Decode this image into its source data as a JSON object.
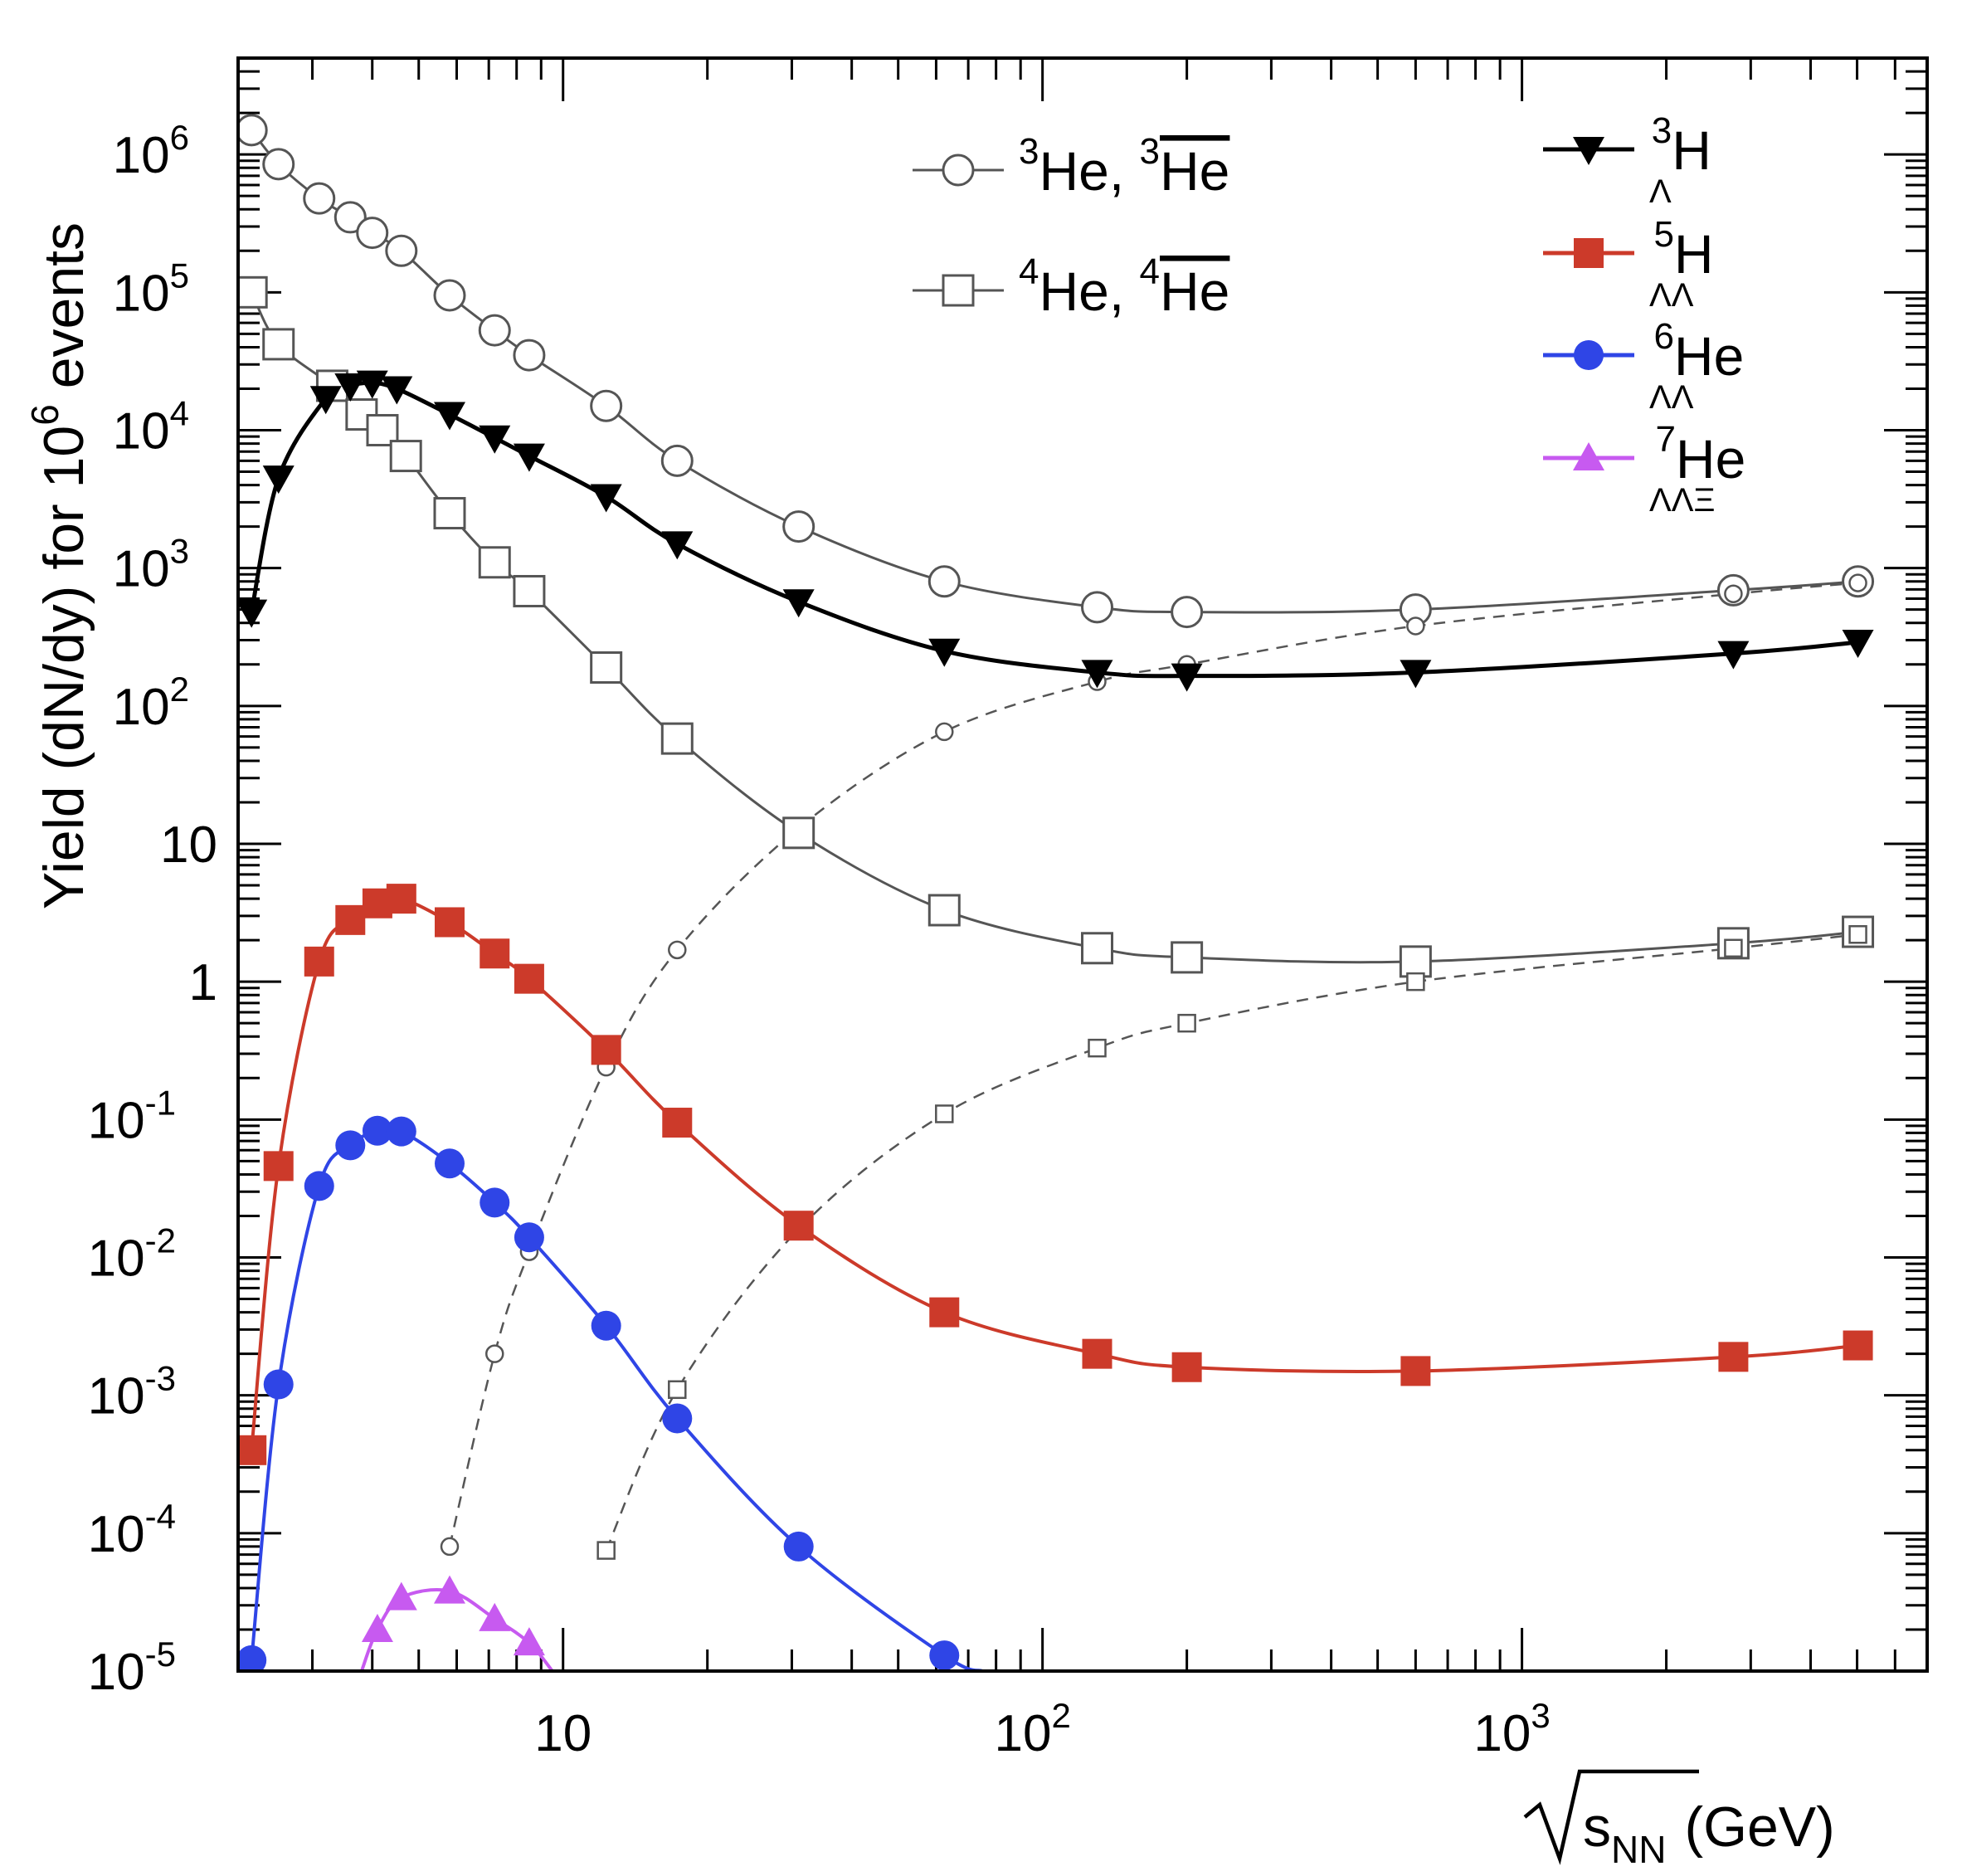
{
  "chart_data": {
    "type": "scatter",
    "title": "",
    "xlabel": "√s_NN (GeV)",
    "xlabel_parts": {
      "sub": "NN",
      "main": "s",
      "units": "(GeV)"
    },
    "ylabel": "Yield (dN/dy) for 10^6 events",
    "ylabel_parts": {
      "pre": "Yield (dN/dy) for 10",
      "exp": "6",
      "post": " events"
    },
    "x_scale": "log",
    "y_scale": "log",
    "xlim": [
      2.1,
      7000
    ],
    "ylim": [
      1e-05,
      5000000
    ],
    "x_ticks": [
      {
        "value": 10,
        "base": "10",
        "exp": ""
      },
      {
        "value": 100,
        "base": "10",
        "exp": "2"
      },
      {
        "value": 1000,
        "base": "10",
        "exp": "3"
      }
    ],
    "y_ticks": [
      {
        "value": 1e-05,
        "base": "10",
        "exp": "-5"
      },
      {
        "value": 0.0001,
        "base": "10",
        "exp": "-4"
      },
      {
        "value": 0.001,
        "base": "10",
        "exp": "-3"
      },
      {
        "value": 0.01,
        "base": "10",
        "exp": "-2"
      },
      {
        "value": 0.1,
        "base": "10",
        "exp": "-1"
      },
      {
        "value": 1,
        "base": "1",
        "exp": ""
      },
      {
        "value": 10,
        "base": "10",
        "exp": ""
      },
      {
        "value": 100,
        "base": "10",
        "exp": "2"
      },
      {
        "value": 1000,
        "base": "10",
        "exp": "3"
      },
      {
        "value": 10000,
        "base": "10",
        "exp": "4"
      },
      {
        "value": 100000,
        "base": "10",
        "exp": "5"
      },
      {
        "value": 1000000,
        "base": "10",
        "exp": "6"
      }
    ],
    "legend": [
      {
        "series": "he3",
        "parts": [
          {
            "t": "3",
            "sup": true
          },
          {
            "t": "He, "
          },
          {
            "t": "3",
            "sup": true
          },
          {
            "t": "He",
            "over": true
          }
        ]
      },
      {
        "series": "he4",
        "parts": [
          {
            "t": "4",
            "sup": true
          },
          {
            "t": "He, "
          },
          {
            "t": "4",
            "sup": true
          },
          {
            "t": "He",
            "over": true
          }
        ]
      },
      {
        "series": "h3l",
        "parts": [
          {
            "t": "Λ",
            "sub": true
          },
          {
            "t": "3",
            "sup": true
          },
          {
            "t": "H"
          }
        ]
      },
      {
        "series": "h5ll",
        "parts": [
          {
            "t": "ΛΛ",
            "sub": true
          },
          {
            "t": "5",
            "sup": true
          },
          {
            "t": "H"
          }
        ]
      },
      {
        "series": "he6ll",
        "parts": [
          {
            "t": "ΛΛ",
            "sub": true
          },
          {
            "t": "6",
            "sup": true
          },
          {
            "t": "He"
          }
        ]
      },
      {
        "series": "he7llx",
        "parts": [
          {
            "t": "ΛΛΞ",
            "sub": true
          },
          {
            "t": "7",
            "sup": true
          },
          {
            "t": "He"
          }
        ]
      }
    ],
    "series": [
      {
        "id": "he3",
        "name": "3He",
        "color": "#555555",
        "marker": "circle-open",
        "line": "solid",
        "x": [
          2.24,
          2.55,
          3.1,
          3.6,
          4.0,
          4.6,
          5.8,
          7.2,
          8.5,
          12.3,
          17.3,
          31,
          62.4,
          130,
          200,
          600,
          2760,
          5020
        ],
        "y": [
          1500000.0,
          850000.0,
          480000.0,
          350000.0,
          270000.0,
          200000.0,
          95000.0,
          53000.0,
          35000.0,
          15000.0,
          6000.0,
          2000.0,
          800,
          520,
          480,
          500,
          690,
          800
        ]
      },
      {
        "id": "he3bar",
        "name": "3He-bar",
        "color": "#555555",
        "marker": "circle-small",
        "line": "dashed",
        "x": [
          5.8,
          7.2,
          8.5,
          12.3,
          17.3,
          31,
          62.4,
          130,
          200,
          600,
          2760,
          5020
        ],
        "y": [
          8e-05,
          0.002,
          0.011,
          0.24,
          1.7,
          13,
          65,
          150,
          200,
          380,
          650,
          780
        ]
      },
      {
        "id": "he4",
        "name": "4He",
        "color": "#555555",
        "marker": "square-open",
        "line": "solid",
        "x": [
          2.24,
          2.55,
          3.3,
          3.8,
          4.2,
          4.7,
          5.8,
          7.2,
          8.5,
          12.3,
          17.3,
          31,
          62.4,
          130,
          200,
          600,
          2760,
          5020
        ],
        "y": [
          100000.0,
          42000.0,
          21000.0,
          13000.0,
          10000.0,
          6500.0,
          2500.0,
          1100.0,
          680,
          190,
          58,
          12,
          3.3,
          1.75,
          1.5,
          1.4,
          1.9,
          2.3
        ]
      },
      {
        "id": "he4bar",
        "name": "4He-bar",
        "color": "#555555",
        "marker": "square-small",
        "line": "dashed",
        "x": [
          12.3,
          17.3,
          31,
          62.4,
          130,
          200,
          600,
          2760,
          5020
        ],
        "y": [
          7.5e-05,
          0.0011,
          0.016,
          0.11,
          0.33,
          0.5,
          1.0,
          1.75,
          2.2
        ]
      },
      {
        "id": "h3l",
        "name": "3ΛH",
        "color": "#000000",
        "marker": "triangle-down",
        "line": "solid",
        "x": [
          2.24,
          2.55,
          3.2,
          3.6,
          4.0,
          4.5,
          5.8,
          7.2,
          8.5,
          12.3,
          17.3,
          31,
          62.4,
          130,
          200,
          600,
          2760,
          5020
        ],
        "y": [
          480,
          4500.0,
          17000.0,
          21000.0,
          22000.0,
          20000.0,
          13000.0,
          8800.0,
          6500.0,
          3300.0,
          1500.0,
          570,
          250,
          175,
          165,
          175,
          240,
          290
        ]
      },
      {
        "id": "h5ll",
        "name": "5ΛΛH",
        "color": "#cc3a2a",
        "marker": "square-filled",
        "line": "solid",
        "x": [
          2.24,
          2.55,
          3.1,
          3.6,
          4.1,
          4.6,
          5.8,
          7.2,
          8.5,
          12.3,
          17.3,
          31,
          62.4,
          130,
          200,
          600,
          2760,
          5020
        ],
        "y": [
          0.0004,
          0.046,
          1.4,
          2.8,
          3.7,
          4.0,
          2.7,
          1.6,
          1.05,
          0.32,
          0.095,
          0.017,
          0.004,
          0.002,
          0.0016,
          0.0015,
          0.0019,
          0.0023
        ]
      },
      {
        "id": "he6ll",
        "name": "6ΛΛHe",
        "color": "#2f45e6",
        "marker": "circle-filled",
        "line": "solid",
        "x": [
          2.24,
          2.55,
          3.1,
          3.6,
          4.1,
          4.6,
          5.8,
          7.2,
          8.5,
          12.3,
          17.3,
          31,
          62.4,
          75
        ],
        "y": [
          1.2e-05,
          0.0012,
          0.033,
          0.065,
          0.083,
          0.082,
          0.048,
          0.025,
          0.014,
          0.0032,
          0.00068,
          8e-05,
          1.3e-05,
          1e-05
        ],
        "markers": [
          true,
          true,
          true,
          true,
          true,
          true,
          true,
          true,
          true,
          true,
          true,
          true,
          true,
          false
        ]
      },
      {
        "id": "he7llx",
        "name": "7ΛΛΞHe",
        "color": "#c75af0",
        "marker": "triangle-up",
        "line": "solid",
        "x": [
          3.8,
          4.1,
          4.6,
          5.8,
          7.2,
          8.5,
          9.5
        ],
        "y": [
          1e-05,
          2e-05,
          3.4e-05,
          3.8e-05,
          2.4e-05,
          1.6e-05,
          1e-05
        ],
        "markers": [
          false,
          true,
          true,
          true,
          true,
          true,
          false
        ]
      }
    ]
  }
}
